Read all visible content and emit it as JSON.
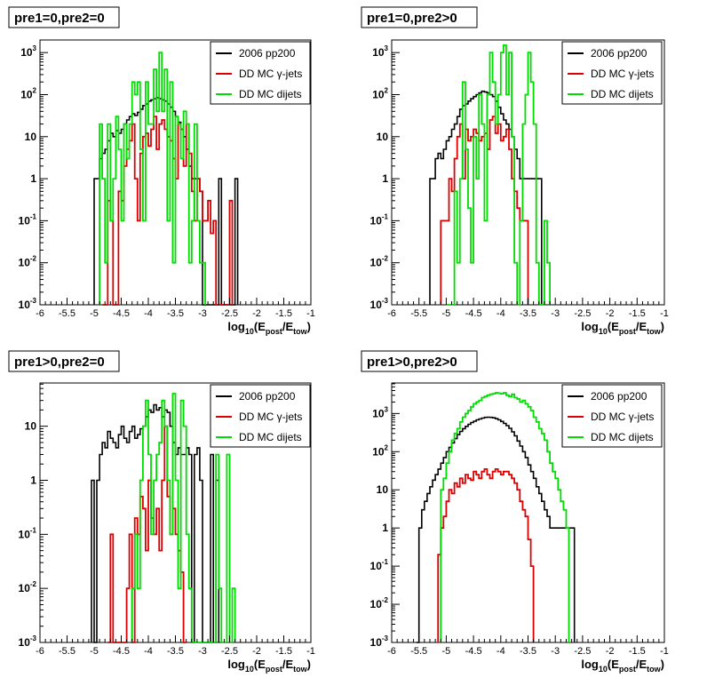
{
  "colors": {
    "data": "#000000",
    "gamma": "#dd0000",
    "dijet": "#00dd00",
    "frame": "#000000",
    "legend_bg": "#ffffff"
  },
  "chart_data": [
    {
      "type": "histogram",
      "title": "pre1=0,pre2=0",
      "xlabel_base": "log",
      "xlabel_sub": "10",
      "xlabel_mid": "(E",
      "xlabel_sub2": "post",
      "xlabel_mid2": "/E",
      "xlabel_sub3": "tow",
      "xlabel_end": ")",
      "xlim": [
        -6,
        -1
      ],
      "ylim_log10": [
        -3,
        3.3
      ],
      "log_y": true,
      "x_ticks": [
        "-6",
        "-5.5",
        "-5",
        "-4.5",
        "-4",
        "-3.5",
        "-3",
        "-2.5",
        "-2",
        "-1.5",
        "-1"
      ],
      "y_ticks": [
        {
          "base": "10",
          "exp": "-3"
        },
        {
          "base": "10",
          "exp": "-2"
        },
        {
          "base": "10",
          "exp": "-1"
        },
        {
          "base": "1",
          "exp": ""
        },
        {
          "base": "10",
          "exp": ""
        },
        {
          "base": "10",
          "exp": "2"
        },
        {
          "base": "10",
          "exp": "3"
        }
      ],
      "legend": [
        "2006 pp200",
        "DD MC γ-jets",
        "DD MC dijets"
      ],
      "bin_width": 0.05,
      "series": [
        {
          "name": "2006 pp200",
          "x_start": -5.0,
          "values": [
            1,
            1,
            3,
            4,
            5,
            8,
            12,
            10,
            14,
            12,
            15,
            20,
            25,
            30,
            35,
            32,
            38,
            45,
            55,
            60,
            70,
            75,
            80,
            85,
            80,
            75,
            70,
            60,
            50,
            40,
            30,
            22,
            15,
            10,
            5,
            2,
            1,
            1,
            1,
            0.5,
            0,
            0,
            0,
            0,
            0,
            0,
            1,
            0,
            0,
            0,
            0,
            0,
            1
          ]
        },
        {
          "name": "DD MC γ-jets",
          "x_start": -4.85,
          "values": [
            0,
            0,
            0.3,
            0.1,
            0,
            0,
            0.5,
            0.3,
            2,
            5,
            8,
            20,
            1,
            0.1,
            4,
            10,
            12,
            6,
            15,
            30,
            5,
            20,
            25,
            15,
            10,
            8,
            3,
            1,
            20,
            15,
            2,
            20,
            4,
            0.5,
            0.1,
            1,
            0.5,
            0.1,
            0.1,
            0.3,
            0.05,
            0.1,
            0,
            0,
            0,
            0,
            0,
            0.3
          ]
        },
        {
          "name": "DD MC dijets",
          "x_start": -4.9,
          "values": [
            20,
            1,
            0.01,
            20,
            0.1,
            1,
            30,
            5,
            0.1,
            20,
            3,
            20,
            200,
            100,
            200,
            5,
            0.1,
            200,
            20,
            20,
            400,
            40,
            1000,
            40,
            400,
            0.1,
            200,
            0.01,
            30,
            20,
            3,
            40,
            20,
            0.01,
            0.1,
            20,
            0.1,
            0.01,
            0.01
          ]
        }
      ]
    },
    {
      "type": "histogram",
      "title": "pre1=0,pre2>0",
      "xlim": [
        -6,
        -1
      ],
      "ylim_log10": [
        -3,
        3.3
      ],
      "log_y": true,
      "legend": [
        "2006 pp200",
        "DD MC γ-jets",
        "DD MC dijets"
      ],
      "bin_width": 0.05,
      "series": [
        {
          "name": "2006 pp200",
          "x_start": -5.3,
          "values": [
            1,
            1,
            3,
            4,
            3,
            5,
            8,
            10,
            15,
            20,
            30,
            45,
            55,
            60,
            70,
            80,
            90,
            100,
            110,
            120,
            115,
            110,
            100,
            90,
            70,
            50,
            35,
            25,
            20,
            15,
            10,
            5,
            3,
            1,
            1,
            1,
            1,
            1,
            1,
            1,
            1
          ]
        },
        {
          "name": "DD MC γ-jets",
          "x_start": -5.1,
          "values": [
            0.1,
            0.1,
            0.1,
            1,
            0.5,
            3,
            10,
            20,
            1,
            15,
            8,
            10,
            15,
            12,
            8,
            10,
            12,
            5,
            25,
            30,
            12,
            20,
            8,
            10,
            15,
            5,
            1,
            0.5,
            0.2,
            0.1,
            0.1,
            0.1
          ]
        },
        {
          "name": "DD MC dijets",
          "x_start": -5.0,
          "values": [
            0.001,
            0.001,
            0.001,
            0.5,
            0.01,
            1,
            200,
            5,
            0.2,
            0.01,
            10,
            1,
            100,
            20,
            0.1,
            100,
            1000,
            200,
            20,
            100,
            1000,
            1500,
            100,
            1000,
            10,
            0.01,
            0.001,
            0.1,
            20,
            100,
            1000,
            200,
            20,
            0.01,
            0.001,
            0.001,
            0.1,
            0.01
          ]
        }
      ]
    },
    {
      "type": "histogram",
      "title": "pre1>0,pre2=0",
      "xlim": [
        -6,
        -1
      ],
      "ylim_log10": [
        -3,
        1.8
      ],
      "log_y": true,
      "legend": [
        "2006 pp200",
        "DD MC γ-jets",
        "DD MC dijets"
      ],
      "bin_width": 0.05,
      "series": [
        {
          "name": "2006 pp200",
          "x_start": -5.05,
          "values": [
            1,
            0.001,
            1,
            3,
            5,
            4,
            8,
            6,
            5,
            4,
            7,
            10,
            6,
            5,
            8,
            10,
            6,
            7,
            9,
            10,
            15,
            20,
            18,
            25,
            20,
            22,
            15,
            20,
            18,
            10,
            5,
            3,
            4,
            3,
            3,
            4,
            3,
            0.001,
            3,
            4,
            1,
            0.001,
            0.001,
            0.001,
            3,
            0.001,
            1
          ]
        },
        {
          "name": "DD MC γ-jets",
          "x_start": -4.75,
          "values": [
            0.001,
            0.1,
            0.001,
            0.001,
            0.001,
            0.001,
            0.001,
            0.01,
            0.1,
            0.001,
            0.2,
            0.1,
            0.5,
            0.3,
            0.05,
            1,
            0.2,
            0.1,
            0.3,
            0.05,
            1,
            10,
            0.5,
            0.1,
            0.3,
            0.1,
            0.05,
            0.02,
            0.001
          ]
        },
        {
          "name": "DD MC dijets",
          "x_start": -4.3,
          "values": [
            0.01,
            0.1,
            0.01,
            1,
            10,
            30,
            3,
            0.1,
            1,
            3,
            5,
            30,
            10,
            1,
            0.1,
            40,
            1,
            0.01,
            30,
            10,
            0.1,
            0.01,
            0.001,
            0.001,
            0.001,
            0.001,
            0.001,
            0.001,
            0.001,
            0.001,
            0.001,
            3,
            0.01,
            0.001,
            0.001,
            3,
            0.001,
            0.01
          ]
        }
      ]
    },
    {
      "type": "histogram",
      "title": "pre1>0,pre2>0",
      "xlim": [
        -6,
        -1
      ],
      "ylim_log10": [
        -3,
        3.8
      ],
      "log_y": true,
      "legend": [
        "2006 pp200",
        "DD MC γ-jets",
        "DD MC dijets"
      ],
      "bin_width": 0.05,
      "series": [
        {
          "name": "2006 pp200",
          "x_start": -5.55,
          "values": [
            0.001,
            1,
            3,
            5,
            8,
            12,
            18,
            25,
            35,
            50,
            70,
            100,
            130,
            170,
            220,
            280,
            340,
            400,
            460,
            520,
            580,
            630,
            680,
            720,
            760,
            790,
            800,
            790,
            770,
            730,
            680,
            620,
            550,
            480,
            410,
            330,
            260,
            190,
            140,
            100,
            70,
            45,
            30,
            20,
            12,
            8,
            5,
            3,
            2,
            1,
            1,
            1,
            1,
            1,
            1,
            1,
            1,
            1
          ]
        },
        {
          "name": "DD MC γ-jets",
          "x_start": -5.15,
          "values": [
            0.2,
            1,
            2,
            5,
            10,
            8,
            15,
            12,
            20,
            15,
            25,
            20,
            18,
            30,
            25,
            20,
            30,
            35,
            25,
            20,
            30,
            35,
            30,
            25,
            30,
            30,
            25,
            20,
            15,
            10,
            5,
            3,
            2,
            0.5,
            0.1
          ]
        },
        {
          "name": "DD MC dijets",
          "x_start": -5.1,
          "values": [
            10,
            20,
            50,
            100,
            200,
            300,
            400,
            600,
            800,
            1000,
            1200,
            1500,
            1800,
            2000,
            2200,
            2600,
            2800,
            3000,
            3200,
            3300,
            3500,
            3400,
            3300,
            3500,
            3000,
            2800,
            3200,
            2600,
            2400,
            2000,
            2200,
            1800,
            1500,
            1200,
            800,
            600,
            400,
            300,
            200,
            100,
            50,
            30,
            20,
            10,
            5,
            3,
            1
          ]
        }
      ]
    }
  ]
}
